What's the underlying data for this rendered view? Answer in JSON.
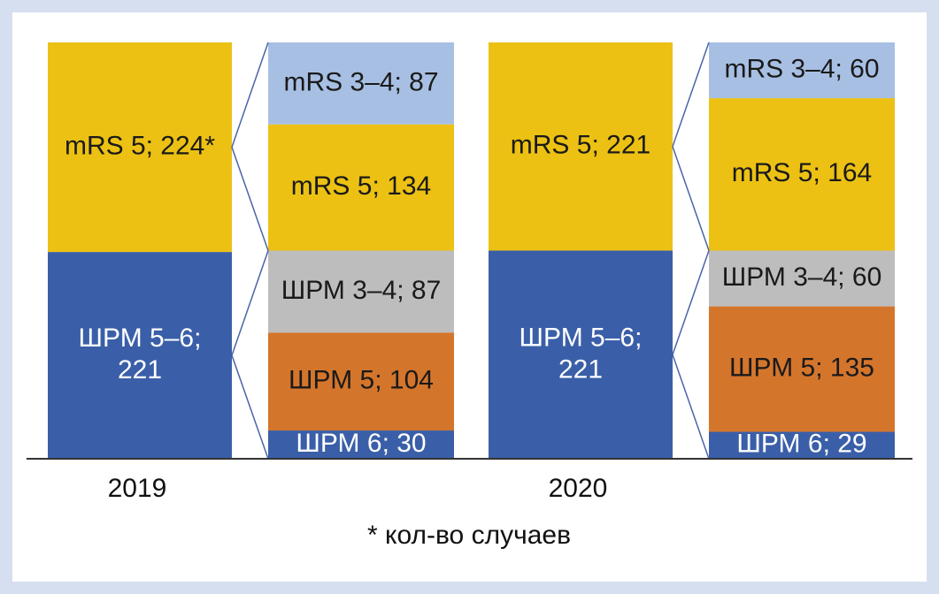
{
  "chart_data": {
    "type": "bar",
    "stacked": true,
    "categories": [
      "2019",
      "2020"
    ],
    "groups": [
      {
        "category": "2019",
        "summary_bar": [
          {
            "label": "ШРМ 5–6;\n221",
            "value": 221,
            "color": "#3a5fa8",
            "text_color": "#ffffff"
          },
          {
            "label": "mRS 5; 224*",
            "value": 224,
            "color": "#ecc113",
            "text_color": "#1a1a1a"
          }
        ],
        "detail_bar": [
          {
            "label": "ШРМ 6; 30",
            "value": 30,
            "color": "#3a5fa8",
            "text_color": "#ffffff"
          },
          {
            "label": "ШРМ 5; 104",
            "value": 104,
            "color": "#d4752c",
            "text_color": "#1a1a1a"
          },
          {
            "label": "ШРМ 3–4; 87",
            "value": 87,
            "color": "#bdbdbd",
            "text_color": "#1a1a1a"
          },
          {
            "label": "mRS 5; 134",
            "value": 134,
            "color": "#ecc113",
            "text_color": "#1a1a1a"
          },
          {
            "label": "mRS 3–4; 87",
            "value": 87,
            "color": "#a7bfe3",
            "text_color": "#1a1a1a"
          }
        ]
      },
      {
        "category": "2020",
        "summary_bar": [
          {
            "label": "ШРМ 5–6;\n221",
            "value": 221,
            "color": "#3a5fa8",
            "text_color": "#ffffff"
          },
          {
            "label": "mRS 5; 221",
            "value": 221,
            "color": "#ecc113",
            "text_color": "#1a1a1a"
          }
        ],
        "detail_bar": [
          {
            "label": "ШРМ 6; 29",
            "value": 29,
            "color": "#3a5fa8",
            "text_color": "#ffffff"
          },
          {
            "label": "ШРМ 5; 135",
            "value": 135,
            "color": "#d4752c",
            "text_color": "#1a1a1a"
          },
          {
            "label": "ШРМ 3–4; 60",
            "value": 60,
            "color": "#bdbdbd",
            "text_color": "#1a1a1a"
          },
          {
            "label": "mRS 5; 164",
            "value": 164,
            "color": "#ecc113",
            "text_color": "#1a1a1a"
          },
          {
            "label": "mRS 3–4; 60",
            "value": 60,
            "color": "#a7bfe3",
            "text_color": "#1a1a1a"
          }
        ]
      }
    ],
    "footnote": "* кол-во случаев",
    "connector_color": "#4a64a8",
    "border_color": "#d6dff0"
  }
}
